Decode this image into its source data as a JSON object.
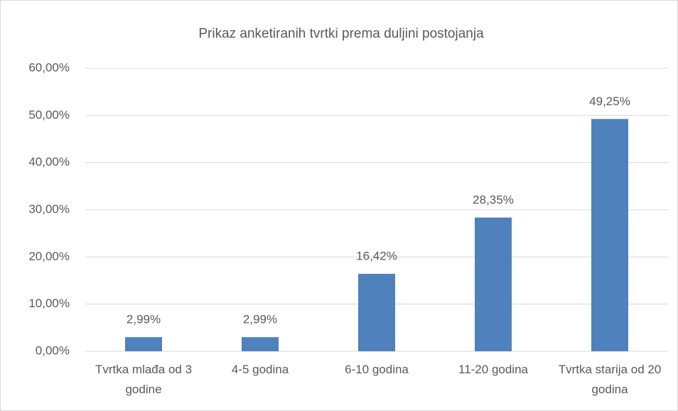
{
  "chart_data": {
    "type": "bar",
    "title": "Prikaz anketiranih tvrtki prema duljini postojanja",
    "categories": [
      "Tvrtka mlađa od 3 godine",
      "4-5 godina",
      "6-10 godina",
      "11-20 godina",
      "Tvrtka starija od 20 godina"
    ],
    "values": [
      2.99,
      2.99,
      16.42,
      28.35,
      49.25
    ],
    "value_labels": [
      "2,99%",
      "2,99%",
      "16,42%",
      "28,35%",
      "49,25%"
    ],
    "color": "#4f81bd",
    "ylim": [
      0,
      60
    ],
    "yticks": [
      {
        "value": 0,
        "label": "0,00%"
      },
      {
        "value": 10,
        "label": "10,00%"
      },
      {
        "value": 20,
        "label": "20,00%"
      },
      {
        "value": 30,
        "label": "30,00%"
      },
      {
        "value": 40,
        "label": "40,00%"
      },
      {
        "value": 50,
        "label": "50,00%"
      },
      {
        "value": 60,
        "label": "60,00%"
      }
    ],
    "grid": true
  }
}
